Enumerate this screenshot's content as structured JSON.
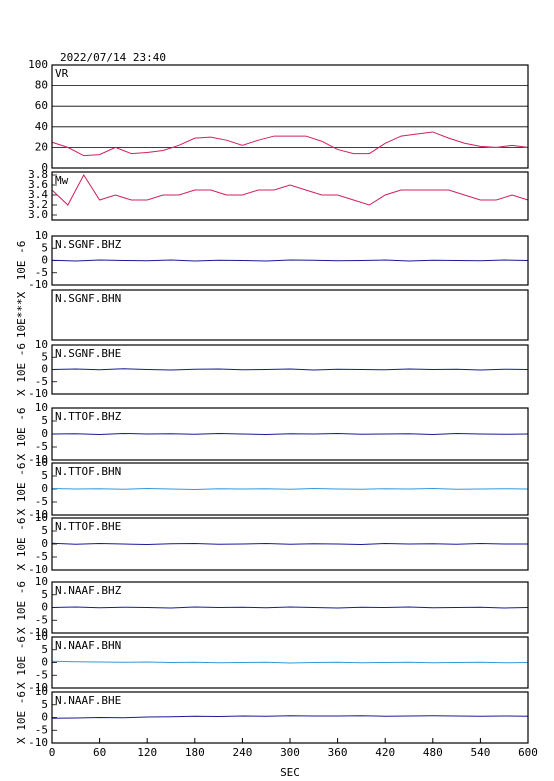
{
  "chart_data": [
    {
      "type": "line",
      "title": "2022/07/14 23:40",
      "label": "VR",
      "color": "#d0205a",
      "grid": true,
      "x": [
        0,
        20,
        40,
        60,
        80,
        100,
        120,
        140,
        160,
        180,
        200,
        220,
        240,
        260,
        280,
        300,
        320,
        340,
        360,
        380,
        400,
        420,
        440,
        460,
        480,
        500,
        520,
        540,
        560,
        580,
        600
      ],
      "values": [
        25,
        20,
        12,
        13,
        20,
        14,
        15,
        17,
        22,
        29,
        30,
        27,
        22,
        27,
        31,
        31,
        31,
        26,
        18,
        14,
        14,
        24,
        31,
        33,
        35,
        29,
        24,
        21,
        20,
        22,
        20
      ],
      "xlim": [
        0,
        600
      ],
      "ylim": [
        0,
        100
      ],
      "yticks": [
        0,
        20,
        40,
        60,
        80,
        100
      ]
    },
    {
      "type": "line",
      "label": "Mw",
      "color": "#d0205a",
      "x": [
        0,
        20,
        40,
        60,
        80,
        100,
        120,
        140,
        160,
        180,
        200,
        220,
        240,
        260,
        280,
        300,
        320,
        340,
        360,
        380,
        400,
        420,
        440,
        460,
        480,
        500,
        520,
        540,
        560,
        580,
        600
      ],
      "values": [
        3.5,
        3.2,
        3.8,
        3.3,
        3.4,
        3.3,
        3.3,
        3.4,
        3.4,
        3.5,
        3.5,
        3.4,
        3.4,
        3.5,
        3.5,
        3.6,
        3.5,
        3.4,
        3.4,
        3.3,
        3.2,
        3.4,
        3.5,
        3.5,
        3.5,
        3.5,
        3.4,
        3.3,
        3.3,
        3.4,
        3.3
      ],
      "xlim": [
        0,
        600
      ],
      "ylim": [
        2.9,
        3.86
      ],
      "yticks": [
        {
          "value": 3,
          "label": "3.0"
        },
        {
          "value": 3.2,
          "label": "3.2"
        },
        {
          "value": 3.4,
          "label": "3.4"
        },
        {
          "value": 3.6,
          "label": "3.6"
        },
        {
          "value": 3.8,
          "label": "3.8"
        }
      ]
    },
    {
      "type": "line",
      "label": "N.SGNF.BHZ",
      "ylabel": "10E -6",
      "color": "#1a1a9a",
      "x": [
        0,
        30,
        60,
        90,
        120,
        150,
        180,
        210,
        240,
        270,
        300,
        330,
        360,
        390,
        420,
        450,
        480,
        510,
        540,
        570,
        600
      ],
      "values": [
        0.1,
        -0.2,
        0.2,
        0,
        -0.1,
        0.2,
        -0.2,
        0.1,
        0,
        -0.2,
        0.2,
        0.1,
        -0.1,
        0,
        0.2,
        -0.2,
        0.1,
        0,
        -0.1,
        0.2,
        0
      ],
      "xlim": [
        0,
        600
      ],
      "ylim": [
        -10,
        10
      ],
      "yticks": [
        -10,
        -5,
        0,
        5,
        10
      ]
    },
    {
      "type": "line",
      "label": "N.SGNF.BHN",
      "ylabel": "10E***X",
      "xlim": [
        0,
        600
      ]
    },
    {
      "type": "line",
      "label": "N.SGNF.BHE",
      "ylabel": "X 10E -6",
      "color": "#1a1a9a",
      "x": [
        0,
        30,
        60,
        90,
        120,
        150,
        180,
        210,
        240,
        270,
        300,
        330,
        360,
        390,
        420,
        450,
        480,
        510,
        540,
        570,
        600
      ],
      "values": [
        0,
        0.2,
        -0.1,
        0.3,
        0,
        -0.2,
        0.1,
        0.2,
        -0.1,
        0,
        0.2,
        -0.2,
        0.1,
        0,
        -0.1,
        0.2,
        0,
        0.1,
        -0.2,
        0.1,
        0
      ],
      "xlim": [
        0,
        600
      ],
      "ylim": [
        -10,
        10
      ],
      "yticks": [
        -10,
        -5,
        0,
        5,
        10
      ]
    },
    {
      "type": "line",
      "label": "N.TTOF.BHZ",
      "ylabel": "X 10E -6",
      "color": "#1a1a9a",
      "x": [
        0,
        30,
        60,
        90,
        120,
        150,
        180,
        210,
        240,
        270,
        300,
        330,
        360,
        390,
        420,
        450,
        480,
        510,
        540,
        570,
        600
      ],
      "values": [
        0,
        0.1,
        -0.2,
        0.2,
        0,
        0.1,
        -0.1,
        0.2,
        0,
        -0.2,
        0.1,
        0,
        0.2,
        -0.1,
        0,
        0.1,
        -0.2,
        0.2,
        0,
        -0.1,
        0
      ],
      "xlim": [
        0,
        600
      ],
      "ylim": [
        -10,
        10
      ],
      "yticks": [
        -10,
        -5,
        0,
        5,
        10
      ]
    },
    {
      "type": "line",
      "label": "N.TTOF.BHN",
      "ylabel": "X 10E -6",
      "color": "#3399dd",
      "x": [
        0,
        30,
        60,
        90,
        120,
        150,
        180,
        210,
        240,
        270,
        300,
        330,
        360,
        390,
        420,
        450,
        480,
        510,
        540,
        570,
        600
      ],
      "values": [
        0.2,
        0,
        0.1,
        -0.1,
        0.2,
        0,
        -0.2,
        0.1,
        0,
        0.1,
        -0.1,
        0.2,
        0,
        -0.1,
        0.1,
        0,
        0.2,
        -0.1,
        0,
        0.1,
        0
      ],
      "xlim": [
        0,
        600
      ],
      "ylim": [
        -10,
        10
      ],
      "yticks": [
        -10,
        -5,
        0,
        5,
        10
      ]
    },
    {
      "type": "line",
      "label": "N.TTOF.BHE",
      "ylabel": "X 10E -6",
      "color": "#1a1a9a",
      "x": [
        0,
        30,
        60,
        90,
        120,
        150,
        180,
        210,
        240,
        270,
        300,
        330,
        360,
        390,
        420,
        450,
        480,
        510,
        540,
        570,
        600
      ],
      "values": [
        0.3,
        -0.1,
        0.2,
        0,
        -0.2,
        0.1,
        0.2,
        -0.1,
        0,
        0.2,
        -0.1,
        0.1,
        0,
        -0.2,
        0.2,
        0,
        0.1,
        -0.1,
        0.2,
        0,
        0
      ],
      "xlim": [
        0,
        600
      ],
      "ylim": [
        -10,
        10
      ],
      "yticks": [
        -10,
        -5,
        0,
        5,
        10
      ]
    },
    {
      "type": "line",
      "label": "N.NAAF.BHZ",
      "ylabel": "X 10E -6",
      "color": "#1a1a9a",
      "x": [
        0,
        30,
        60,
        90,
        120,
        150,
        180,
        210,
        240,
        270,
        300,
        330,
        360,
        390,
        420,
        450,
        480,
        510,
        540,
        570,
        600
      ],
      "values": [
        0,
        0.2,
        -0.1,
        0.1,
        0,
        -0.2,
        0.2,
        0,
        0.1,
        -0.1,
        0.2,
        0,
        -0.2,
        0.1,
        0,
        0.2,
        -0.1,
        0,
        0.1,
        -0.2,
        0
      ],
      "xlim": [
        0,
        600
      ],
      "ylim": [
        -10,
        10
      ],
      "yticks": [
        -10,
        -5,
        0,
        5,
        10
      ]
    },
    {
      "type": "line",
      "label": "N.NAAF.BHN",
      "ylabel": "X 10E -6",
      "color": "#3399dd",
      "x": [
        0,
        30,
        60,
        90,
        120,
        150,
        180,
        210,
        240,
        270,
        300,
        330,
        360,
        390,
        420,
        450,
        480,
        510,
        540,
        570,
        600
      ],
      "values": [
        0.5,
        0.3,
        0.2,
        0.1,
        0.2,
        0,
        0.1,
        -0.1,
        0,
        0.1,
        -0.2,
        0,
        0.1,
        -0.1,
        0,
        0.1,
        -0.1,
        0,
        0.1,
        -0.1,
        0
      ],
      "xlim": [
        0,
        600
      ],
      "ylim": [
        -10,
        10
      ],
      "yticks": [
        -10,
        -5,
        0,
        5,
        10
      ]
    },
    {
      "type": "line",
      "label": "N.NAAF.BHE",
      "ylabel": "X 10E -6",
      "xlabel": "SEC",
      "color": "#1a1a9a",
      "x": [
        0,
        30,
        60,
        90,
        120,
        150,
        180,
        210,
        240,
        270,
        300,
        330,
        360,
        390,
        420,
        450,
        480,
        510,
        540,
        570,
        600
      ],
      "values": [
        -0.3,
        -0.2,
        0,
        -0.1,
        0.2,
        0.3,
        0.5,
        0.4,
        0.6,
        0.5,
        0.7,
        0.6,
        0.6,
        0.7,
        0.5,
        0.6,
        0.7,
        0.6,
        0.5,
        0.6,
        0.5
      ],
      "xlim": [
        0,
        600
      ],
      "ylim": [
        -10,
        10
      ],
      "yticks": [
        -10,
        -5,
        0,
        5,
        10
      ],
      "xticks": [
        0,
        60,
        120,
        180,
        240,
        300,
        360,
        420,
        480,
        540,
        600
      ]
    }
  ]
}
